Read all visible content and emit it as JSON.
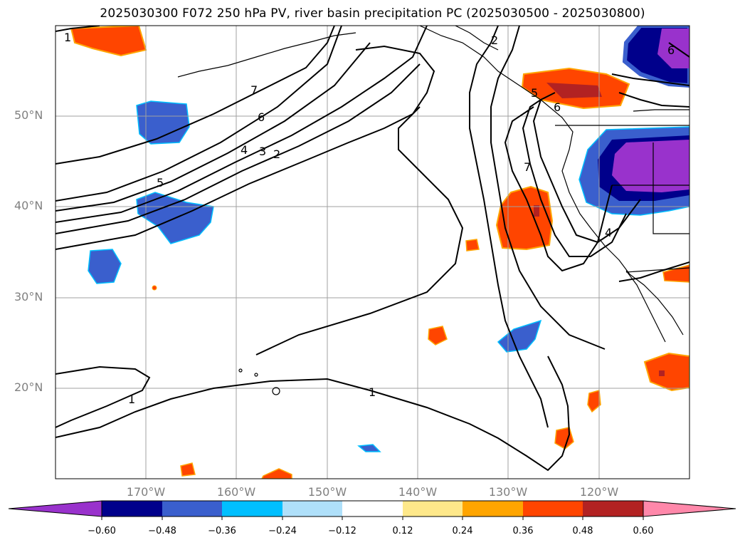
{
  "title": "2025030300 F072 250 hPa PV, river basin precipitation PC (2025030500 - 2025030800)",
  "map": {
    "projection": "PlateCarree",
    "lon_range": [
      "180°",
      "110°W"
    ],
    "lat_range": [
      "10°N",
      "60°N"
    ],
    "lat_labels": [
      "50°N",
      "40°N",
      "30°N",
      "20°N"
    ],
    "lon_labels": [
      "170°W",
      "160°W",
      "150°W",
      "140°W",
      "130°W",
      "120°W"
    ],
    "grid": true,
    "contour_field": "250 hPa PV",
    "contour_color": "#000000",
    "contour_labels": [
      "1",
      "5",
      "4",
      "3",
      "2",
      "6",
      "7",
      "2",
      "5",
      "6",
      "7",
      "4",
      "6",
      "1",
      "1"
    ]
  },
  "colorbar": {
    "orientation": "horizontal",
    "extend": "both",
    "tick_labels": [
      "−0.60",
      "−0.48",
      "−0.36",
      "−0.24",
      "−0.12",
      "0.12",
      "0.24",
      "0.36",
      "0.48",
      "0.60"
    ],
    "colors": [
      "#9932cc",
      "#00008b",
      "#3a5fcd",
      "#00bfff",
      "#afe0fa",
      "#ffffff",
      "#fee88a",
      "#ffa500",
      "#ff4500",
      "#b22222",
      "#ff88aa"
    ]
  }
}
